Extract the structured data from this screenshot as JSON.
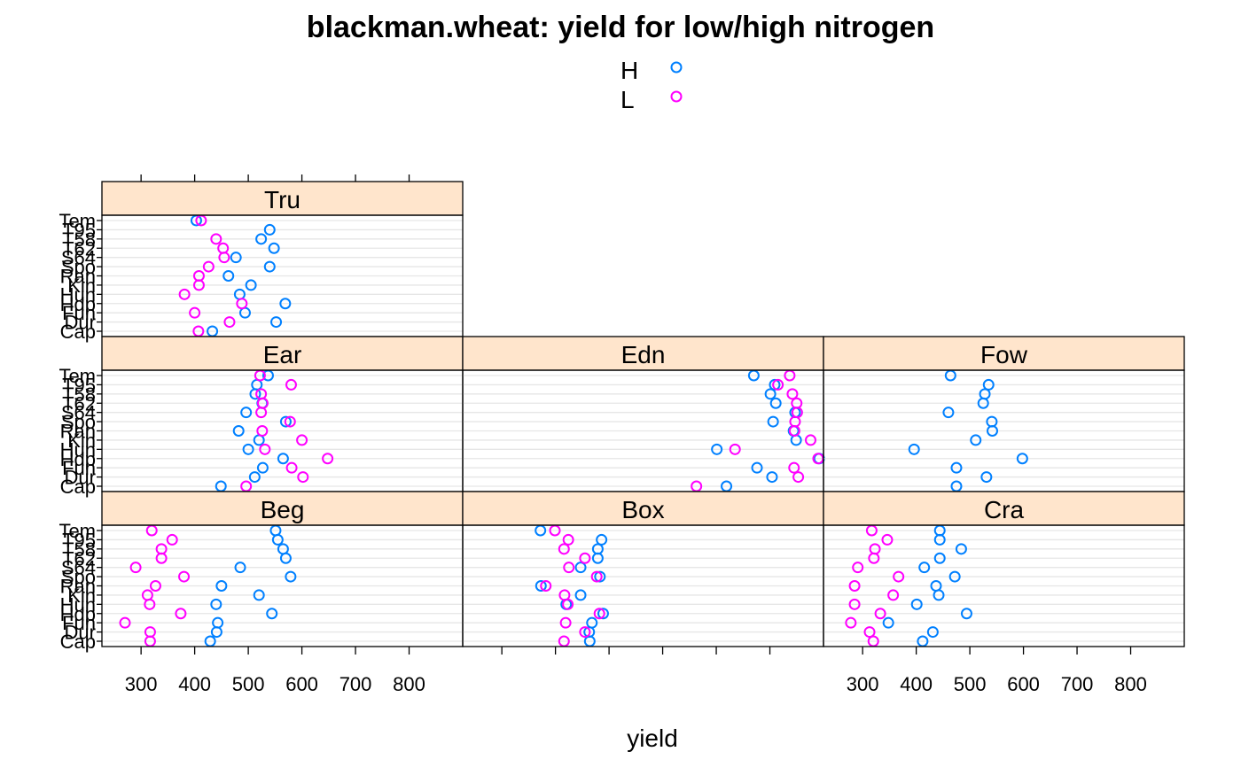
{
  "chart_data": {
    "type": "scatter",
    "title": "blackman.wheat: yield for low/high nitrogen",
    "xlabel": "yield",
    "ylabel": "",
    "xlim": [
      227,
      900
    ],
    "x_ticks": [
      300,
      400,
      500,
      600,
      700,
      800
    ],
    "legend_position": "top-center",
    "grid": true,
    "series": [
      {
        "name": "H",
        "color": "#0080ff"
      },
      {
        "name": "L",
        "color": "#ff00ff"
      }
    ],
    "categories": [
      "Cap",
      "Dur",
      "Fun",
      "Hdp",
      "Hun",
      "Kin",
      "Ran",
      "Spo",
      "S64",
      "T62",
      "T58",
      "T95",
      "Tem"
    ],
    "panels": [
      {
        "name": "Tru",
        "H": [
          433,
          552,
          494,
          569,
          484,
          505,
          463,
          540,
          477,
          548,
          524,
          540,
          403
        ],
        "L": [
          407,
          465,
          400,
          488,
          381,
          408,
          408,
          426,
          455,
          453,
          440,
          null,
          412
        ]
      },
      {
        "name": "Ear",
        "H": [
          449,
          512,
          527,
          565,
          500,
          520,
          482,
          570,
          496,
          526,
          513,
          516,
          537
        ],
        "L": [
          496,
          602,
          581,
          648,
          531,
          600,
          526,
          578,
          524,
          527,
          524,
          580,
          522
        ]
      },
      {
        "name": "Edn",
        "H": [
          719,
          804,
          776,
          892,
          701,
          849,
          844,
          806,
          847,
          811,
          801,
          809,
          770
        ],
        "L": [
          663,
          853,
          845,
          890,
          735,
          876,
          846,
          847,
          851,
          850,
          842,
          815,
          837
        ]
      },
      {
        "name": "Fow",
        "H": [
          475,
          531,
          475,
          598,
          396,
          511,
          542,
          541,
          460,
          525,
          528,
          535,
          464
        ]
      },
      {
        "name": "Beg",
        "H": [
          429,
          441,
          443,
          544,
          440,
          520,
          450,
          579,
          485,
          570,
          565,
          555,
          551
        ],
        "L": [
          317,
          317,
          270,
          374,
          316,
          312,
          327,
          380,
          290,
          338,
          338,
          358,
          320
        ]
      },
      {
        "name": "Box",
        "H": [
          464,
          463,
          468,
          489,
          420,
          447,
          373,
          483,
          447,
          479,
          479,
          486,
          372
        ],
        "L": [
          416,
          455,
          419,
          482,
          423,
          417,
          382,
          477,
          425,
          455,
          416,
          424,
          399
        ]
      },
      {
        "name": "Cra",
        "H": [
          412,
          431,
          348,
          494,
          401,
          442,
          437,
          472,
          415,
          444,
          484,
          444,
          444
        ],
        "L": [
          320,
          313,
          278,
          333,
          285,
          357,
          285,
          367,
          291,
          321,
          323,
          346,
          317
        ]
      }
    ]
  }
}
